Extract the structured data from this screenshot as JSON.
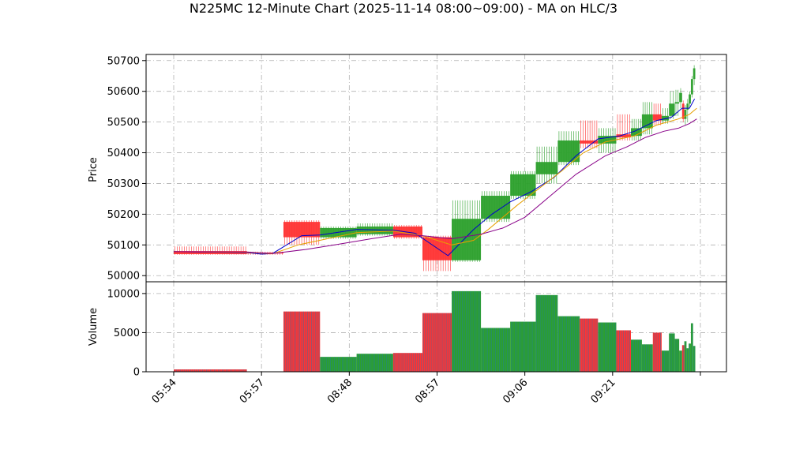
{
  "chart_data": {
    "type": "candlestick",
    "title": "N225MC 12-Minute Chart (2025-11-14 08:00~09:00) - MA on HLC/3",
    "price_panel": {
      "ylabel": "Price",
      "ylim": [
        49980,
        50720
      ],
      "yticks": [
        50000,
        50100,
        50200,
        50300,
        50400,
        50500,
        50600,
        50700
      ],
      "grid": true
    },
    "volume_panel": {
      "ylabel": "Volume",
      "ylim": [
        0,
        11500
      ],
      "yticks": [
        0,
        5000,
        10000
      ],
      "grid": true
    },
    "x_ticks": [
      {
        "index": 0,
        "label": "05:54"
      },
      {
        "index": 12,
        "label": "05:57"
      },
      {
        "index": 24,
        "label": "08:48"
      },
      {
        "index": 36,
        "label": "08:57"
      },
      {
        "index": 48,
        "label": "09:06"
      },
      {
        "index": 60,
        "label": "09:21"
      },
      {
        "index": 72,
        "label": ""
      }
    ],
    "bars": [
      {
        "start": 0,
        "span": 10,
        "open": 50080,
        "high": 50095,
        "low": 50068,
        "close": 50070,
        "volume": 300
      },
      {
        "start": 10,
        "span": 5,
        "open": 50075,
        "high": 50078,
        "low": 50068,
        "close": 50072,
        "volume": 0
      },
      {
        "start": 15,
        "span": 5,
        "open": 50175,
        "high": 50180,
        "low": 50100,
        "close": 50125,
        "volume": 7700
      },
      {
        "start": 20,
        "span": 5,
        "open": 50125,
        "high": 50160,
        "low": 50120,
        "close": 50155,
        "volume": 1900
      },
      {
        "start": 25,
        "span": 5,
        "open": 50135,
        "high": 50170,
        "low": 50130,
        "close": 50160,
        "volume": 2300
      },
      {
        "start": 30,
        "span": 4,
        "open": 50160,
        "high": 50165,
        "low": 50120,
        "close": 50125,
        "volume": 2400
      },
      {
        "start": 34,
        "span": 4,
        "open": 50125,
        "high": 50130,
        "low": 50015,
        "close": 50050,
        "volume": 7500
      },
      {
        "start": 38,
        "span": 4,
        "open": 50050,
        "high": 50245,
        "low": 50045,
        "close": 50185,
        "volume": 10300
      },
      {
        "start": 42,
        "span": 4,
        "open": 50185,
        "high": 50275,
        "low": 50175,
        "close": 50260,
        "volume": 5600
      },
      {
        "start": 46,
        "span": 3.5,
        "open": 50260,
        "high": 50340,
        "low": 50250,
        "close": 50330,
        "volume": 6400
      },
      {
        "start": 49.5,
        "span": 3,
        "open": 50330,
        "high": 50420,
        "low": 50300,
        "close": 50370,
        "volume": 9800
      },
      {
        "start": 52.5,
        "span": 3,
        "open": 50370,
        "high": 50470,
        "low": 50360,
        "close": 50440,
        "volume": 7100
      },
      {
        "start": 55.5,
        "span": 2.5,
        "open": 50440,
        "high": 50505,
        "low": 50415,
        "close": 50430,
        "volume": 6800
      },
      {
        "start": 58,
        "span": 2.5,
        "open": 50430,
        "high": 50480,
        "low": 50400,
        "close": 50455,
        "volume": 6300
      },
      {
        "start": 60.5,
        "span": 2,
        "open": 50460,
        "high": 50525,
        "low": 50440,
        "close": 50450,
        "volume": 5300
      },
      {
        "start": 62.5,
        "span": 1.5,
        "open": 50455,
        "high": 50510,
        "low": 50440,
        "close": 50480,
        "volume": 4100
      },
      {
        "start": 64,
        "span": 1.5,
        "open": 50480,
        "high": 50565,
        "low": 50460,
        "close": 50525,
        "volume": 3500
      },
      {
        "start": 65.5,
        "span": 1.2,
        "open": 50525,
        "high": 50560,
        "low": 50490,
        "close": 50505,
        "volume": 5000
      },
      {
        "start": 66.7,
        "span": 1,
        "open": 50505,
        "high": 50545,
        "low": 50495,
        "close": 50520,
        "volume": 2700
      },
      {
        "start": 67.7,
        "span": 0.8,
        "open": 50520,
        "high": 50600,
        "low": 50510,
        "close": 50560,
        "volume": 4900
      },
      {
        "start": 68.5,
        "span": 0.6,
        "open": 50560,
        "high": 50605,
        "low": 50520,
        "close": 50565,
        "volume": 4200
      },
      {
        "start": 69.1,
        "span": 0.4,
        "open": 50565,
        "high": 50610,
        "low": 50545,
        "close": 50595,
        "volume": 2700
      },
      {
        "start": 69.5,
        "span": 0.3,
        "open": 50560,
        "high": 50570,
        "low": 50500,
        "close": 50510,
        "volume": 3400
      },
      {
        "start": 69.8,
        "span": 0.3,
        "open": 50510,
        "high": 50555,
        "low": 50490,
        "close": 50540,
        "volume": 3900
      },
      {
        "start": 70.1,
        "span": 0.3,
        "open": 50540,
        "high": 50575,
        "low": 50500,
        "close": 50560,
        "volume": 3000
      },
      {
        "start": 70.4,
        "span": 0.3,
        "open": 50560,
        "high": 50600,
        "low": 50545,
        "close": 50590,
        "volume": 3600
      },
      {
        "start": 70.7,
        "span": 0.3,
        "open": 50590,
        "high": 50650,
        "low": 50580,
        "close": 50640,
        "volume": 6200
      },
      {
        "start": 71.0,
        "span": 0.3,
        "open": 50640,
        "high": 50685,
        "low": 50620,
        "close": 50675,
        "volume": 3300
      }
    ],
    "ma_lines": [
      {
        "color": "#0000cc",
        "points": [
          [
            0,
            50078
          ],
          [
            10,
            50075
          ],
          [
            12,
            50070
          ],
          [
            13.5,
            50072
          ],
          [
            17.5,
            50130
          ],
          [
            20,
            50132
          ],
          [
            25,
            50150
          ],
          [
            30,
            50148
          ],
          [
            33,
            50138
          ],
          [
            37.5,
            50065
          ],
          [
            41,
            50150
          ],
          [
            43.5,
            50200
          ],
          [
            46,
            50240
          ],
          [
            49,
            50275
          ],
          [
            52,
            50320
          ],
          [
            55,
            50390
          ],
          [
            58,
            50445
          ],
          [
            61,
            50455
          ],
          [
            63,
            50470
          ],
          [
            66,
            50505
          ],
          [
            68,
            50515
          ],
          [
            69.5,
            50545
          ],
          [
            70.5,
            50545
          ],
          [
            71.2,
            50575
          ]
        ]
      },
      {
        "color": "#e6a000",
        "points": [
          [
            0,
            50078
          ],
          [
            10,
            50076
          ],
          [
            13.5,
            50071
          ],
          [
            17,
            50100
          ],
          [
            21,
            50120
          ],
          [
            25,
            50140
          ],
          [
            30,
            50145
          ],
          [
            34,
            50130
          ],
          [
            38,
            50100
          ],
          [
            41,
            50115
          ],
          [
            43,
            50150
          ],
          [
            47,
            50230
          ],
          [
            50,
            50285
          ],
          [
            53,
            50340
          ],
          [
            56,
            50400
          ],
          [
            59,
            50435
          ],
          [
            63,
            50455
          ],
          [
            66,
            50490
          ],
          [
            69,
            50510
          ],
          [
            70.5,
            50525
          ],
          [
            71.5,
            50545
          ]
        ]
      },
      {
        "color": "#880088",
        "points": [
          [
            0,
            50078
          ],
          [
            10,
            50077
          ],
          [
            13.5,
            50072
          ],
          [
            18,
            50085
          ],
          [
            22,
            50100
          ],
          [
            27,
            50120
          ],
          [
            31,
            50135
          ],
          [
            34,
            50130
          ],
          [
            38,
            50120
          ],
          [
            42,
            50135
          ],
          [
            45,
            50155
          ],
          [
            48,
            50190
          ],
          [
            51,
            50250
          ],
          [
            55,
            50330
          ],
          [
            59,
            50390
          ],
          [
            62,
            50420
          ],
          [
            64.5,
            50450
          ],
          [
            67,
            50470
          ],
          [
            69,
            50480
          ],
          [
            70.5,
            50495
          ],
          [
            71.5,
            50510
          ]
        ]
      }
    ],
    "colors": {
      "up": "#2ca02c",
      "down": "#ff3333",
      "volume_edge": "#1f77b4"
    }
  }
}
